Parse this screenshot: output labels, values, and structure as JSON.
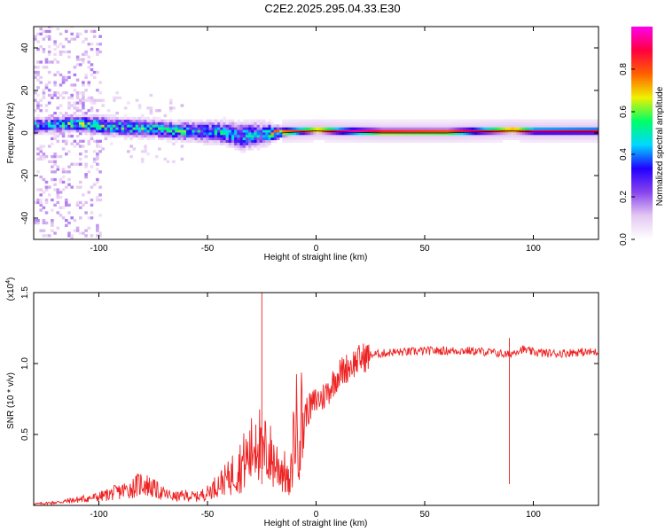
{
  "page": {
    "title": "C2E2.2025.295.04.33.E30"
  },
  "chart_data": [
    {
      "type": "heatmap",
      "title": "C2E2.2025.295.04.33.E30",
      "xlabel": "Height of straight line (km)",
      "ylabel": "Frequency (Hz)",
      "xlim": [
        -130,
        130
      ],
      "ylim": [
        -50,
        50
      ],
      "xticks": [
        -100,
        -50,
        0,
        50,
        100
      ],
      "yticks": [
        -40,
        -20,
        0,
        20,
        40
      ],
      "colorbar": {
        "label": "Normalized spectral amplitude",
        "range": [
          0,
          1
        ],
        "ticks": [
          0.0,
          0.2,
          0.4,
          0.6,
          0.8
        ],
        "tick_labels": [
          "0.0",
          "0.2",
          "0.4",
          "0.6",
          "0.8"
        ],
        "colors": [
          "#ffffff",
          "#e4c8f2",
          "#8844ee",
          "#2200ff",
          "#00d8ff",
          "#00ff66",
          "#f0f000",
          "#ff6000",
          "#ff0040",
          "#ff00ee"
        ]
      },
      "ridge": [
        {
          "x": -125,
          "center": 3,
          "width": 7,
          "amp": 0.4
        },
        {
          "x": -110,
          "center": 4,
          "width": 7,
          "amp": 0.5
        },
        {
          "x": -100,
          "center": 3,
          "width": 8,
          "amp": 0.5
        },
        {
          "x": -85,
          "center": 2,
          "width": 8,
          "amp": 0.45
        },
        {
          "x": -70,
          "center": 1,
          "width": 8,
          "amp": 0.45
        },
        {
          "x": -55,
          "center": 0,
          "width": 9,
          "amp": 0.4
        },
        {
          "x": -45,
          "center": 0,
          "width": 10,
          "amp": 0.4
        },
        {
          "x": -35,
          "center": -2,
          "width": 12,
          "amp": 0.4
        },
        {
          "x": -25,
          "center": -1,
          "width": 11,
          "amp": 0.35
        },
        {
          "x": -16,
          "center": 0,
          "width": 4,
          "amp": 0.8
        },
        {
          "x": 0,
          "center": 1,
          "width": 3,
          "amp": 0.85
        },
        {
          "x": 10,
          "center": 0.5,
          "width": 3,
          "amp": 0.95
        },
        {
          "x": 30,
          "center": 0,
          "width": 3,
          "amp": 0.95
        },
        {
          "x": 60,
          "center": 0,
          "width": 3,
          "amp": 0.9
        },
        {
          "x": 90,
          "center": 1,
          "width": 3,
          "amp": 0.9
        },
        {
          "x": 100,
          "center": 0.5,
          "width": 3,
          "amp": 0.95
        },
        {
          "x": 130,
          "center": 0.5,
          "width": 3,
          "amp": 0.9
        }
      ]
    },
    {
      "type": "line",
      "xlabel": "Height of straight line (km)",
      "ylabel": "SNR (10 * v/v)",
      "exponent_label": "(x10",
      "exponent_power": "4",
      "exponent_close": ")",
      "xlim": [
        -130,
        130
      ],
      "ylim": [
        0,
        1.5
      ],
      "xticks": [
        -100,
        -50,
        0,
        50,
        100
      ],
      "yticks": [
        0.5,
        1.0,
        1.5
      ],
      "ytick_labels": [
        "0.5",
        "1.0",
        "1.5"
      ],
      "series": [
        {
          "name": "SNR",
          "color": "#ee2222",
          "x": [
            -130,
            -120,
            -110,
            -100,
            -90,
            -85,
            -80,
            -75,
            -70,
            -65,
            -60,
            -55,
            -50,
            -45,
            -40,
            -35,
            -30,
            -27,
            -25,
            -23,
            -20,
            -15,
            -12,
            -10,
            -7,
            -5,
            -2,
            0,
            3,
            6,
            10,
            15,
            20,
            25,
            30,
            35,
            40,
            50,
            60,
            70,
            80,
            85,
            88,
            90,
            92,
            95,
            100,
            110,
            120,
            130
          ],
          "values": [
            0.01,
            0.02,
            0.04,
            0.06,
            0.1,
            0.12,
            0.16,
            0.12,
            0.08,
            0.06,
            0.07,
            0.06,
            0.09,
            0.15,
            0.2,
            0.28,
            0.36,
            0.55,
            0.3,
            0.4,
            0.32,
            0.25,
            0.12,
            0.55,
            0.58,
            0.65,
            0.7,
            0.74,
            0.76,
            0.82,
            0.92,
            0.98,
            1.03,
            1.06,
            1.07,
            1.08,
            1.08,
            1.09,
            1.09,
            1.09,
            1.08,
            1.07,
            1.06,
            1.07,
            1.09,
            1.1,
            1.08,
            1.07,
            1.08,
            1.08
          ]
        }
      ],
      "annotations": [
        {
          "x": -25,
          "value": 1.5,
          "note": "spike"
        },
        {
          "x": 89,
          "value": 1.18,
          "note": "spike"
        }
      ]
    }
  ]
}
